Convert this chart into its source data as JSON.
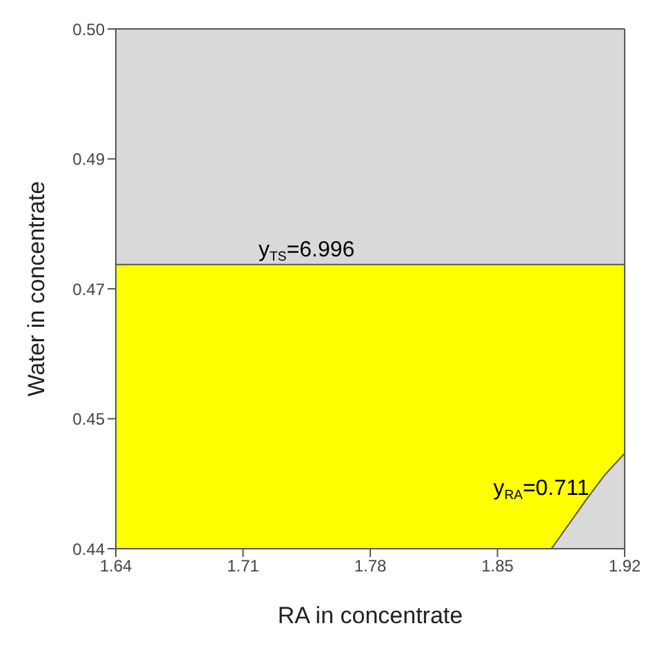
{
  "chart_data": {
    "type": "area",
    "xlabel": "RA in concentrate",
    "ylabel": "Water  in concentrate",
    "series": [
      {
        "color": "#ffff00",
        "x": [
          1.64,
          1.92
        ],
        "values": [
          0.4728,
          0.4728
        ]
      },
      {
        "color": "#d9d9d9",
        "x": [
          1.8797,
          1.899,
          1.909,
          1.92
        ],
        "values": [
          0.44,
          0.4457,
          0.4485,
          0.451
        ]
      }
    ],
    "xlim": [
      1.64,
      1.92
    ],
    "xticks": [
      1.64,
      1.71,
      1.78,
      1.85,
      1.92
    ],
    "ylim": [
      0.44,
      0.5
    ],
    "yticks": [
      0.44,
      {
        "value": 0.455,
        "label": "0.45"
      },
      0.47,
      {
        "value": 0.485,
        "label": "0.49"
      },
      {
        "value": 0.5,
        "label": "0.50"
      }
    ],
    "bands": [
      {
        "axis": "y",
        "from": 0.4728,
        "to": 0.5,
        "color": "#d9d9d9"
      }
    ],
    "annotations": [
      {
        "text": "y$_{TS}$=6.996",
        "x": 1.745,
        "y": 0.4728
      },
      {
        "text": "y$_{RA}$=0.711",
        "x": 1.902,
        "y": 0.4465
      }
    ],
    "legend": false
  }
}
